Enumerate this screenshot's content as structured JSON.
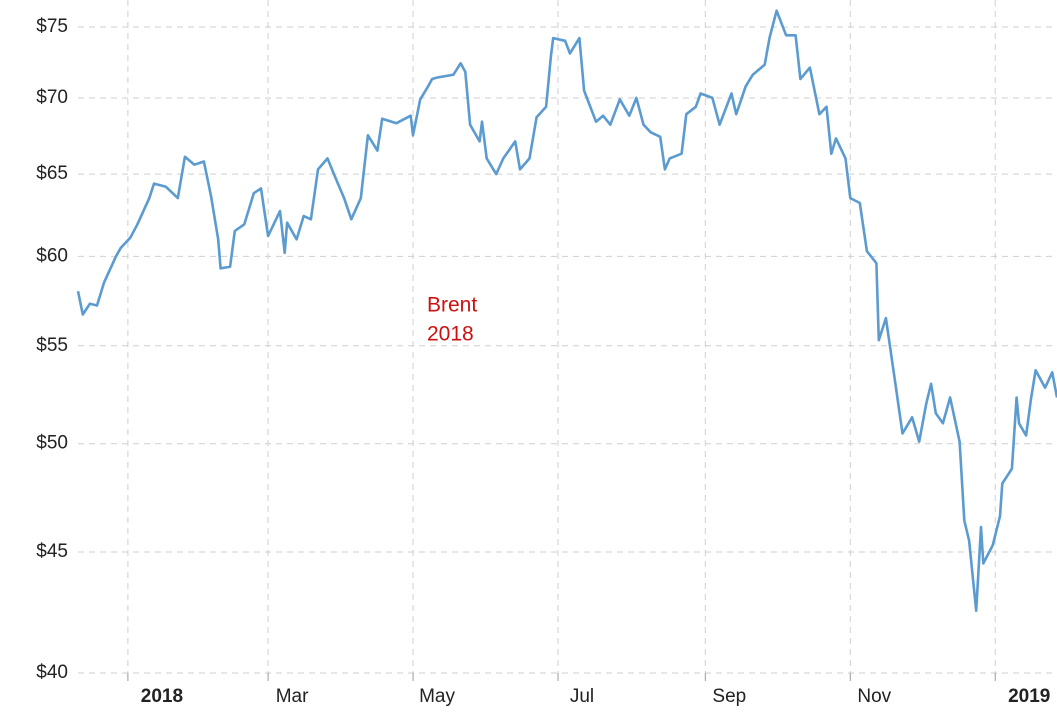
{
  "chart_data": {
    "type": "line",
    "annotation": [
      "Brent",
      "2018"
    ],
    "log_scale": true,
    "grid": true,
    "x": [
      "2017-12-11",
      "2017-12-13",
      "2017-12-16",
      "2017-12-19",
      "2017-12-22",
      "2017-12-27",
      "2017-12-29",
      "2018-01-02",
      "2018-01-05",
      "2018-01-10",
      "2018-01-12",
      "2018-01-17",
      "2018-01-22",
      "2018-01-25",
      "2018-01-29",
      "2018-02-02",
      "2018-02-05",
      "2018-02-08",
      "2018-02-09",
      "2018-02-13",
      "2018-02-15",
      "2018-02-19",
      "2018-02-23",
      "2018-02-26",
      "2018-03-01",
      "2018-03-06",
      "2018-03-08",
      "2018-03-09",
      "2018-03-13",
      "2018-03-16",
      "2018-03-19",
      "2018-03-22",
      "2018-03-26",
      "2018-03-29",
      "2018-04-02",
      "2018-04-05",
      "2018-04-09",
      "2018-04-12",
      "2018-04-16",
      "2018-04-18",
      "2018-04-24",
      "2018-04-30",
      "2018-05-01",
      "2018-05-04",
      "2018-05-07",
      "2018-05-09",
      "2018-05-11",
      "2018-05-18",
      "2018-05-21",
      "2018-05-23",
      "2018-05-25",
      "2018-05-29",
      "2018-05-30",
      "2018-06-01",
      "2018-06-05",
      "2018-06-08",
      "2018-06-13",
      "2018-06-15",
      "2018-06-19",
      "2018-06-22",
      "2018-06-26",
      "2018-06-28",
      "2018-06-29",
      "2018-07-04",
      "2018-07-06",
      "2018-07-10",
      "2018-07-12",
      "2018-07-17",
      "2018-07-20",
      "2018-07-23",
      "2018-07-27",
      "2018-07-31",
      "2018-08-03",
      "2018-08-06",
      "2018-08-09",
      "2018-08-13",
      "2018-08-15",
      "2018-08-17",
      "2018-08-22",
      "2018-08-24",
      "2018-08-28",
      "2018-08-30",
      "2018-09-04",
      "2018-09-07",
      "2018-09-12",
      "2018-09-14",
      "2018-09-18",
      "2018-09-21",
      "2018-09-26",
      "2018-09-28",
      "2018-10-01",
      "2018-10-05",
      "2018-10-09",
      "2018-10-11",
      "2018-10-15",
      "2018-10-19",
      "2018-10-22",
      "2018-10-24",
      "2018-10-26",
      "2018-10-30",
      "2018-11-01",
      "2018-11-05",
      "2018-11-08",
      "2018-11-12",
      "2018-11-13",
      "2018-11-16",
      "2018-11-20",
      "2018-11-23",
      "2018-11-27",
      "2018-11-30",
      "2018-12-03",
      "2018-12-05",
      "2018-12-07",
      "2018-12-10",
      "2018-12-13",
      "2018-12-17",
      "2018-12-19",
      "2018-12-21",
      "2018-12-24",
      "2018-12-26",
      "2018-12-27",
      "2018-12-31",
      "2019-01-03",
      "2019-01-04",
      "2019-01-08",
      "2019-01-10",
      "2019-01-11",
      "2019-01-14",
      "2019-01-16",
      "2019-01-18",
      "2019-01-22",
      "2019-01-25",
      "2019-01-27"
    ],
    "series": [
      {
        "name": "Brent",
        "color": "#5b9bd0",
        "values": [
          58.0,
          56.7,
          57.3,
          57.2,
          58.5,
          60.0,
          60.5,
          61.1,
          61.9,
          63.5,
          64.4,
          64.2,
          63.5,
          66.1,
          65.6,
          65.8,
          63.6,
          61.0,
          59.3,
          59.4,
          61.5,
          61.9,
          63.8,
          64.1,
          61.2,
          62.7,
          60.2,
          62.0,
          61.0,
          62.4,
          62.2,
          65.3,
          66.0,
          64.9,
          63.5,
          62.2,
          63.5,
          67.5,
          66.5,
          68.6,
          68.3,
          68.8,
          67.5,
          69.9,
          70.7,
          71.3,
          71.4,
          71.6,
          72.4,
          71.8,
          68.2,
          67.1,
          68.4,
          66.0,
          65.0,
          66.0,
          67.1,
          65.3,
          66.0,
          68.7,
          69.4,
          72.9,
          74.2,
          74.0,
          73.1,
          74.2,
          70.5,
          68.4,
          68.8,
          68.2,
          69.9,
          68.8,
          70.0,
          68.2,
          67.7,
          67.4,
          65.3,
          66.0,
          66.3,
          68.9,
          69.4,
          70.3,
          70.0,
          68.2,
          70.3,
          68.9,
          70.8,
          71.6,
          72.3,
          74.2,
          76.2,
          74.4,
          74.4,
          71.3,
          72.1,
          68.9,
          69.4,
          66.3,
          67.3,
          66.0,
          63.5,
          63.2,
          60.3,
          59.6,
          55.3,
          56.5,
          53.0,
          50.5,
          51.3,
          50.1,
          52.0,
          53.0,
          51.5,
          51.0,
          52.3,
          50.1,
          46.4,
          45.5,
          42.5,
          46.1,
          44.5,
          45.3,
          46.6,
          48.1,
          48.8,
          52.3,
          51.0,
          50.4,
          52.2,
          53.7,
          52.8,
          53.6,
          52.3
        ]
      }
    ],
    "xlim": [
      "2017-12-11",
      "2019-01-27"
    ],
    "xticks": [
      {
        "value": "2018-01-01",
        "label": "2018"
      },
      {
        "value": "2018-03-01",
        "label": "Mar"
      },
      {
        "value": "2018-05-01",
        "label": "May"
      },
      {
        "value": "2018-07-01",
        "label": "Jul"
      },
      {
        "value": "2018-09-01",
        "label": "Sep"
      },
      {
        "value": "2018-11-01",
        "label": "Nov"
      },
      {
        "value": "2019-01-01",
        "label": "2019"
      }
    ],
    "ylim": [
      40,
      77
    ],
    "yticks": [
      {
        "value": 40,
        "label": "$40"
      },
      {
        "value": 45,
        "label": "$45"
      },
      {
        "value": 50,
        "label": "$50"
      },
      {
        "value": 55,
        "label": "$55"
      },
      {
        "value": 60,
        "label": "$60"
      },
      {
        "value": 65,
        "label": "$65"
      },
      {
        "value": 70,
        "label": "$70"
      },
      {
        "value": 75,
        "label": "$75"
      }
    ]
  }
}
